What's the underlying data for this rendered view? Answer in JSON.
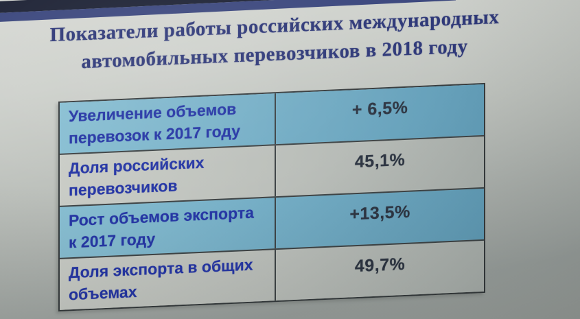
{
  "slide": {
    "title_line1": "Показатели работы российских международных",
    "title_line2": "автомобильных перевозчиков в 2018 году",
    "table": {
      "rows": [
        {
          "label_line1": "Увеличение объемов",
          "label_line2": "перевозок к 2017 году",
          "value": "+ 6,5%"
        },
        {
          "label_line1": "Доля российских",
          "label_line2": "перевозчиков",
          "value": "45,1%"
        },
        {
          "label_line1": "Рост объемов экспорта",
          "label_line2": "к 2017 году",
          "value": "+13,5%"
        },
        {
          "label_line1": "Доля экспорта в общих",
          "label_line2": "объемах",
          "value": "49,7%"
        }
      ]
    }
  },
  "colors": {
    "title-navy": "#2b3576",
    "label-blue": "#2334a4",
    "value-dark": "#2b3340",
    "row-blue-light": "#87bed2",
    "row-blue-dark": "#5f9bb6",
    "row-gray-light": "#c9ccc6",
    "row-gray-dark": "#a9afab",
    "stripe-dark": "#1b2033",
    "stripe-navy": "#39457c"
  }
}
